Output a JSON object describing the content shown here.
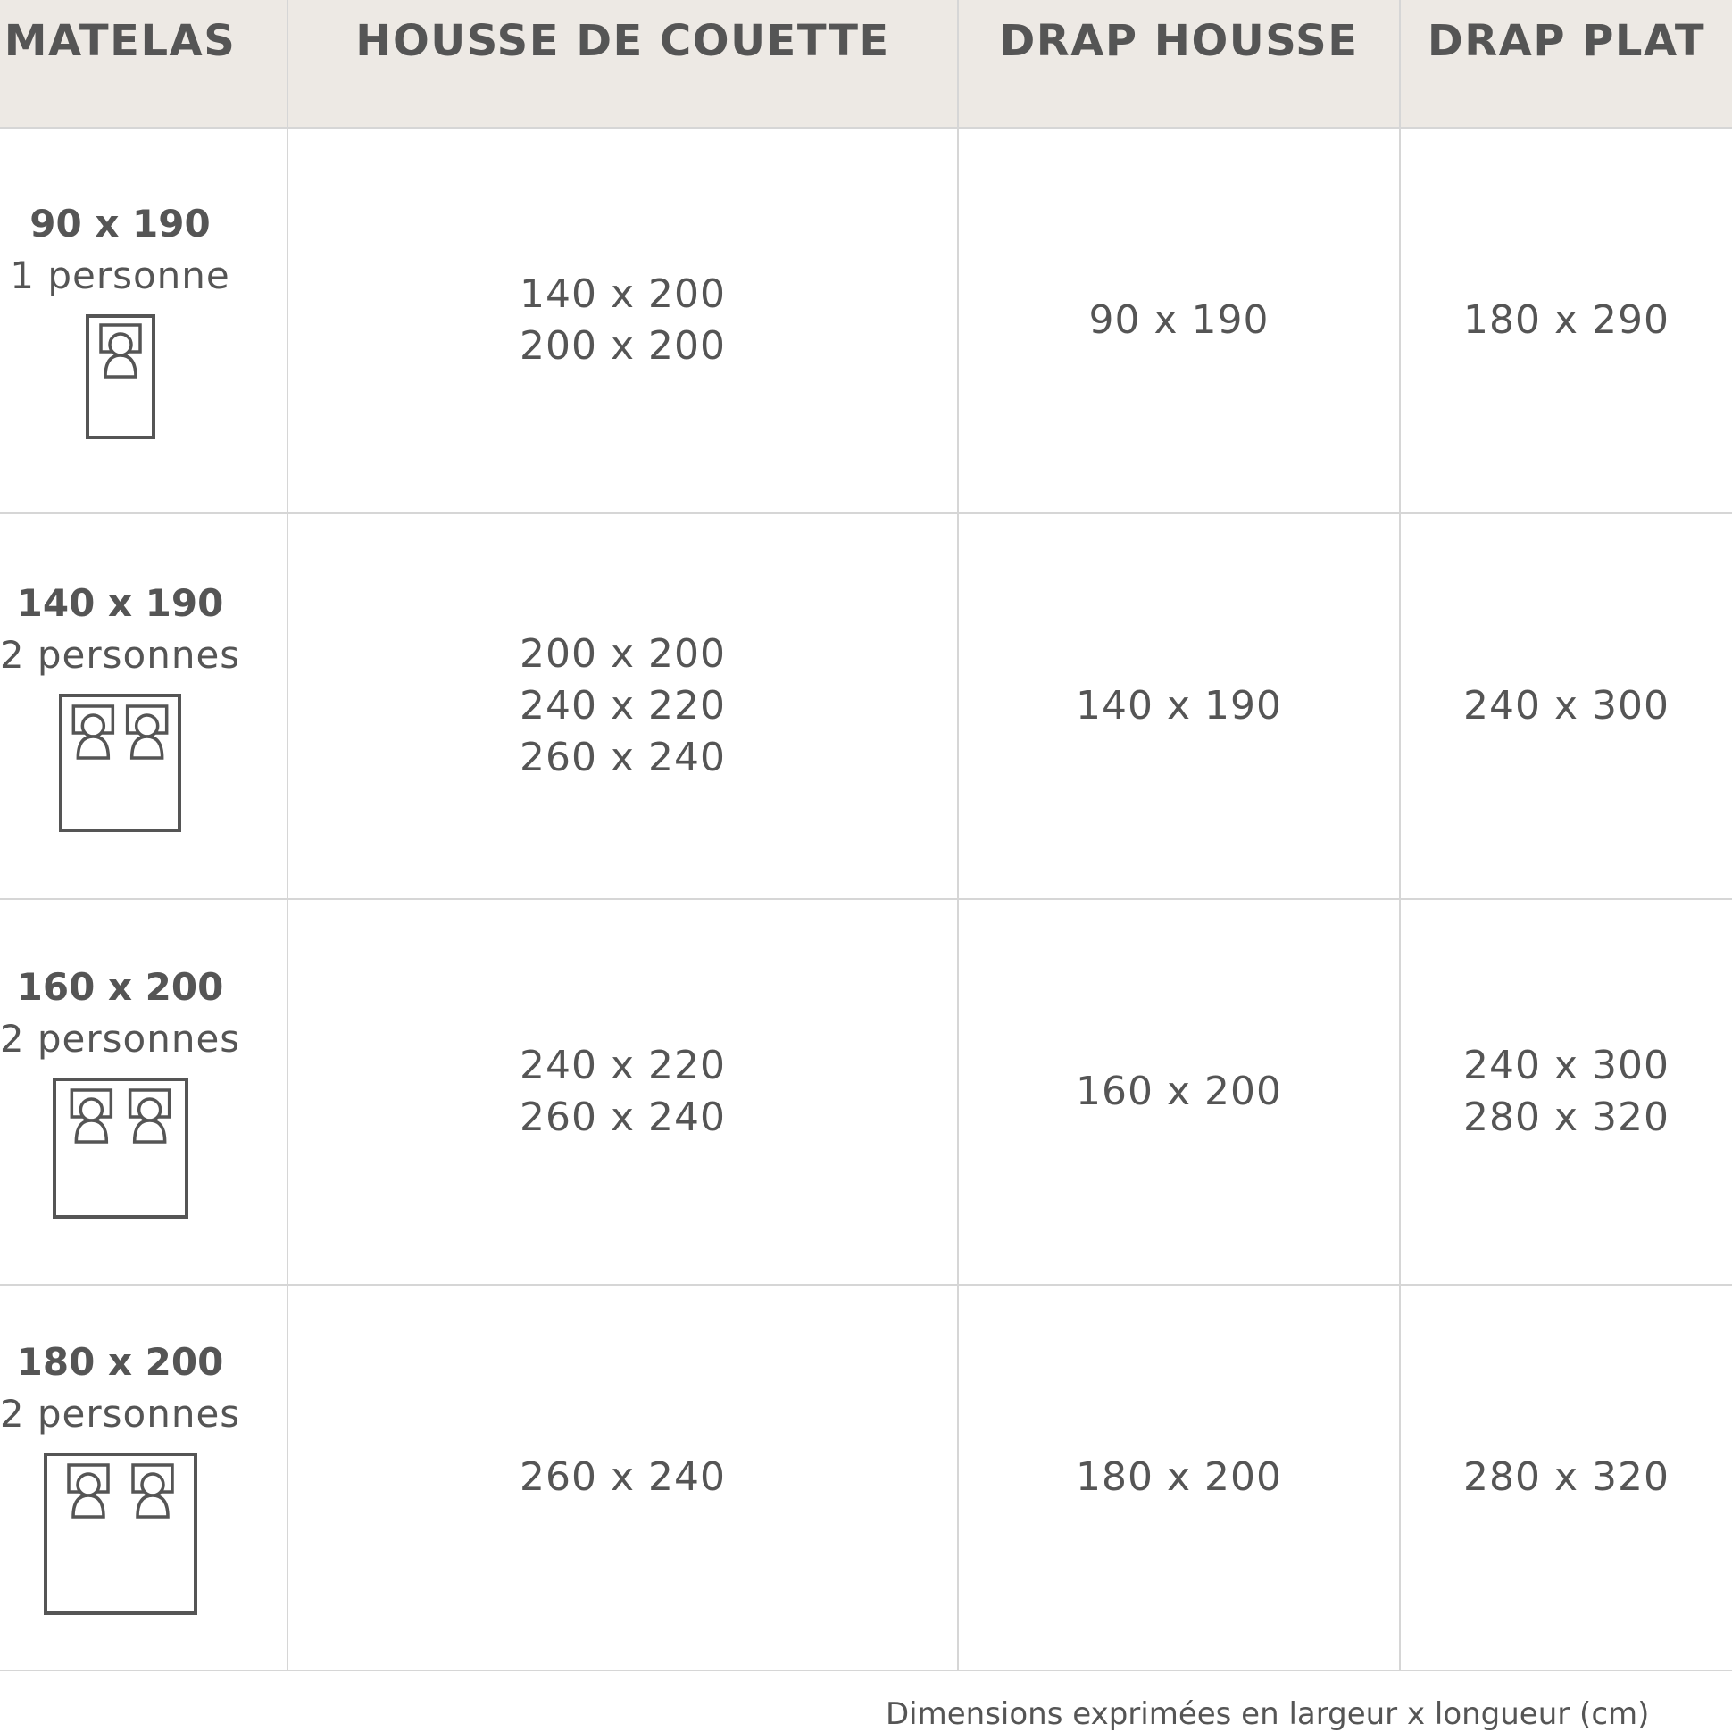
{
  "headers": [
    "MATELAS",
    "HOUSSE DE COUETTE",
    "DRAP HOUSSE",
    "DRAP PLAT"
  ],
  "rows": [
    {
      "size": "90 x 190",
      "persons": "1 personne",
      "bed_icon": "single-bed-icon",
      "couette": [
        "140 x 200",
        "200 x 200"
      ],
      "drap_housse": [
        "90 x 190"
      ],
      "drap_plat": [
        "180 x 290"
      ]
    },
    {
      "size": "140 x 190",
      "persons": "2 personnes",
      "bed_icon": "double-bed-icon",
      "couette": [
        "200 x 200",
        "240 x 220",
        "260 x 240"
      ],
      "drap_housse": [
        "140 x 190"
      ],
      "drap_plat": [
        "240 x 300"
      ]
    },
    {
      "size": "160 x 200",
      "persons": "2 personnes",
      "bed_icon": "queen-bed-icon",
      "couette": [
        "240 x 220",
        "260 x 240"
      ],
      "drap_housse": [
        "160 x 200"
      ],
      "drap_plat": [
        "240 x 300",
        "280 x 320"
      ]
    },
    {
      "size": "180 x 200",
      "persons": "2 personnes",
      "bed_icon": "king-bed-icon",
      "couette": [
        "260 x 240"
      ],
      "drap_housse": [
        "180 x 200"
      ],
      "drap_plat": [
        "280 x 320"
      ]
    }
  ],
  "footer": "Dimensions exprimées en largeur x longueur (cm)",
  "colors": {
    "header_bg": "#ede9e4",
    "text": "#555555",
    "border": "#d6d6d6"
  }
}
